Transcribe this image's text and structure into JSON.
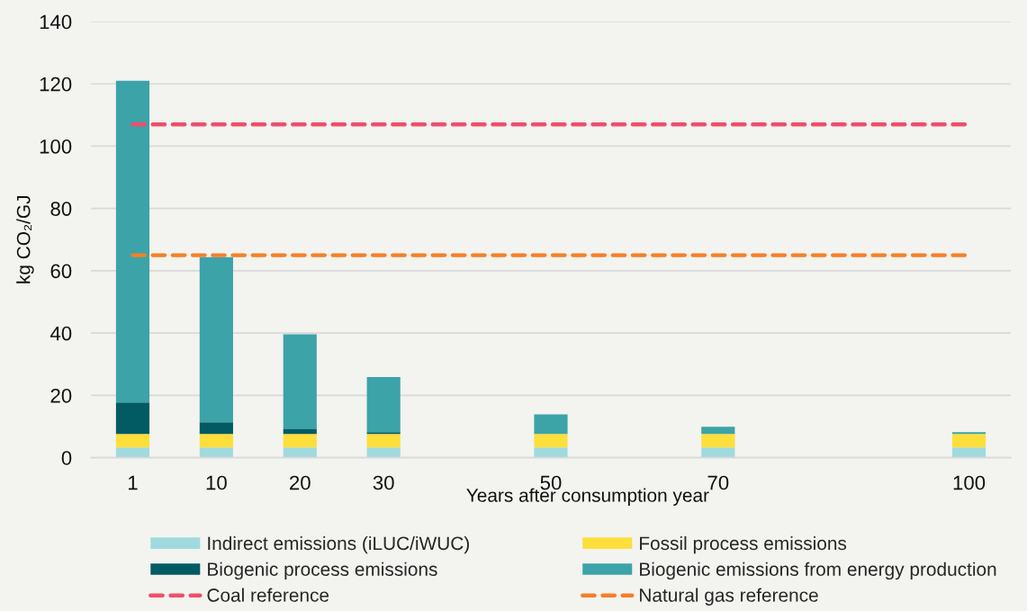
{
  "chart_data": {
    "type": "bar",
    "stacked": true,
    "categories": [
      "1",
      "10",
      "20",
      "30",
      null,
      "50",
      null,
      "70",
      null,
      null,
      "100"
    ],
    "series": [
      {
        "name": "Indirect emissions (iLUC/iWUC)",
        "color": "#a0dade",
        "values": [
          3.3,
          3.3,
          3.3,
          3.3,
          null,
          3.3,
          null,
          3.3,
          null,
          null,
          3.3
        ]
      },
      {
        "name": "Fossil process emissions",
        "color": "#fddf3b",
        "values": [
          4.3,
          4.3,
          4.3,
          4.3,
          null,
          4.3,
          null,
          4.3,
          null,
          null,
          4.3
        ]
      },
      {
        "name": "Biogenic process emissions",
        "color": "#025a63",
        "values": [
          10.1,
          3.8,
          1.5,
          0.6,
          null,
          0,
          null,
          0,
          null,
          null,
          0
        ]
      },
      {
        "name": "Biogenic emissions from energy production",
        "color": "#3ca3a8",
        "values": [
          103.3,
          53.0,
          30.5,
          17.7,
          null,
          6.3,
          null,
          2.3,
          null,
          null,
          0.6
        ]
      }
    ],
    "ref_lines": [
      {
        "axis": "y",
        "value": 107,
        "label": "Coal reference",
        "color": "#ef4f6a",
        "line_style": "dashed"
      },
      {
        "axis": "y",
        "value": 65,
        "label": "Natural gas reference",
        "color": "#f58026",
        "line_style": "dashed"
      }
    ],
    "xlabel": "Years after consumption year",
    "ylabel": "kg CO₂/GJ",
    "ylim": [
      0,
      140
    ],
    "yticks": [
      0,
      20,
      40,
      60,
      80,
      100,
      120,
      140
    ],
    "grid": "y",
    "legend": "bottom"
  }
}
